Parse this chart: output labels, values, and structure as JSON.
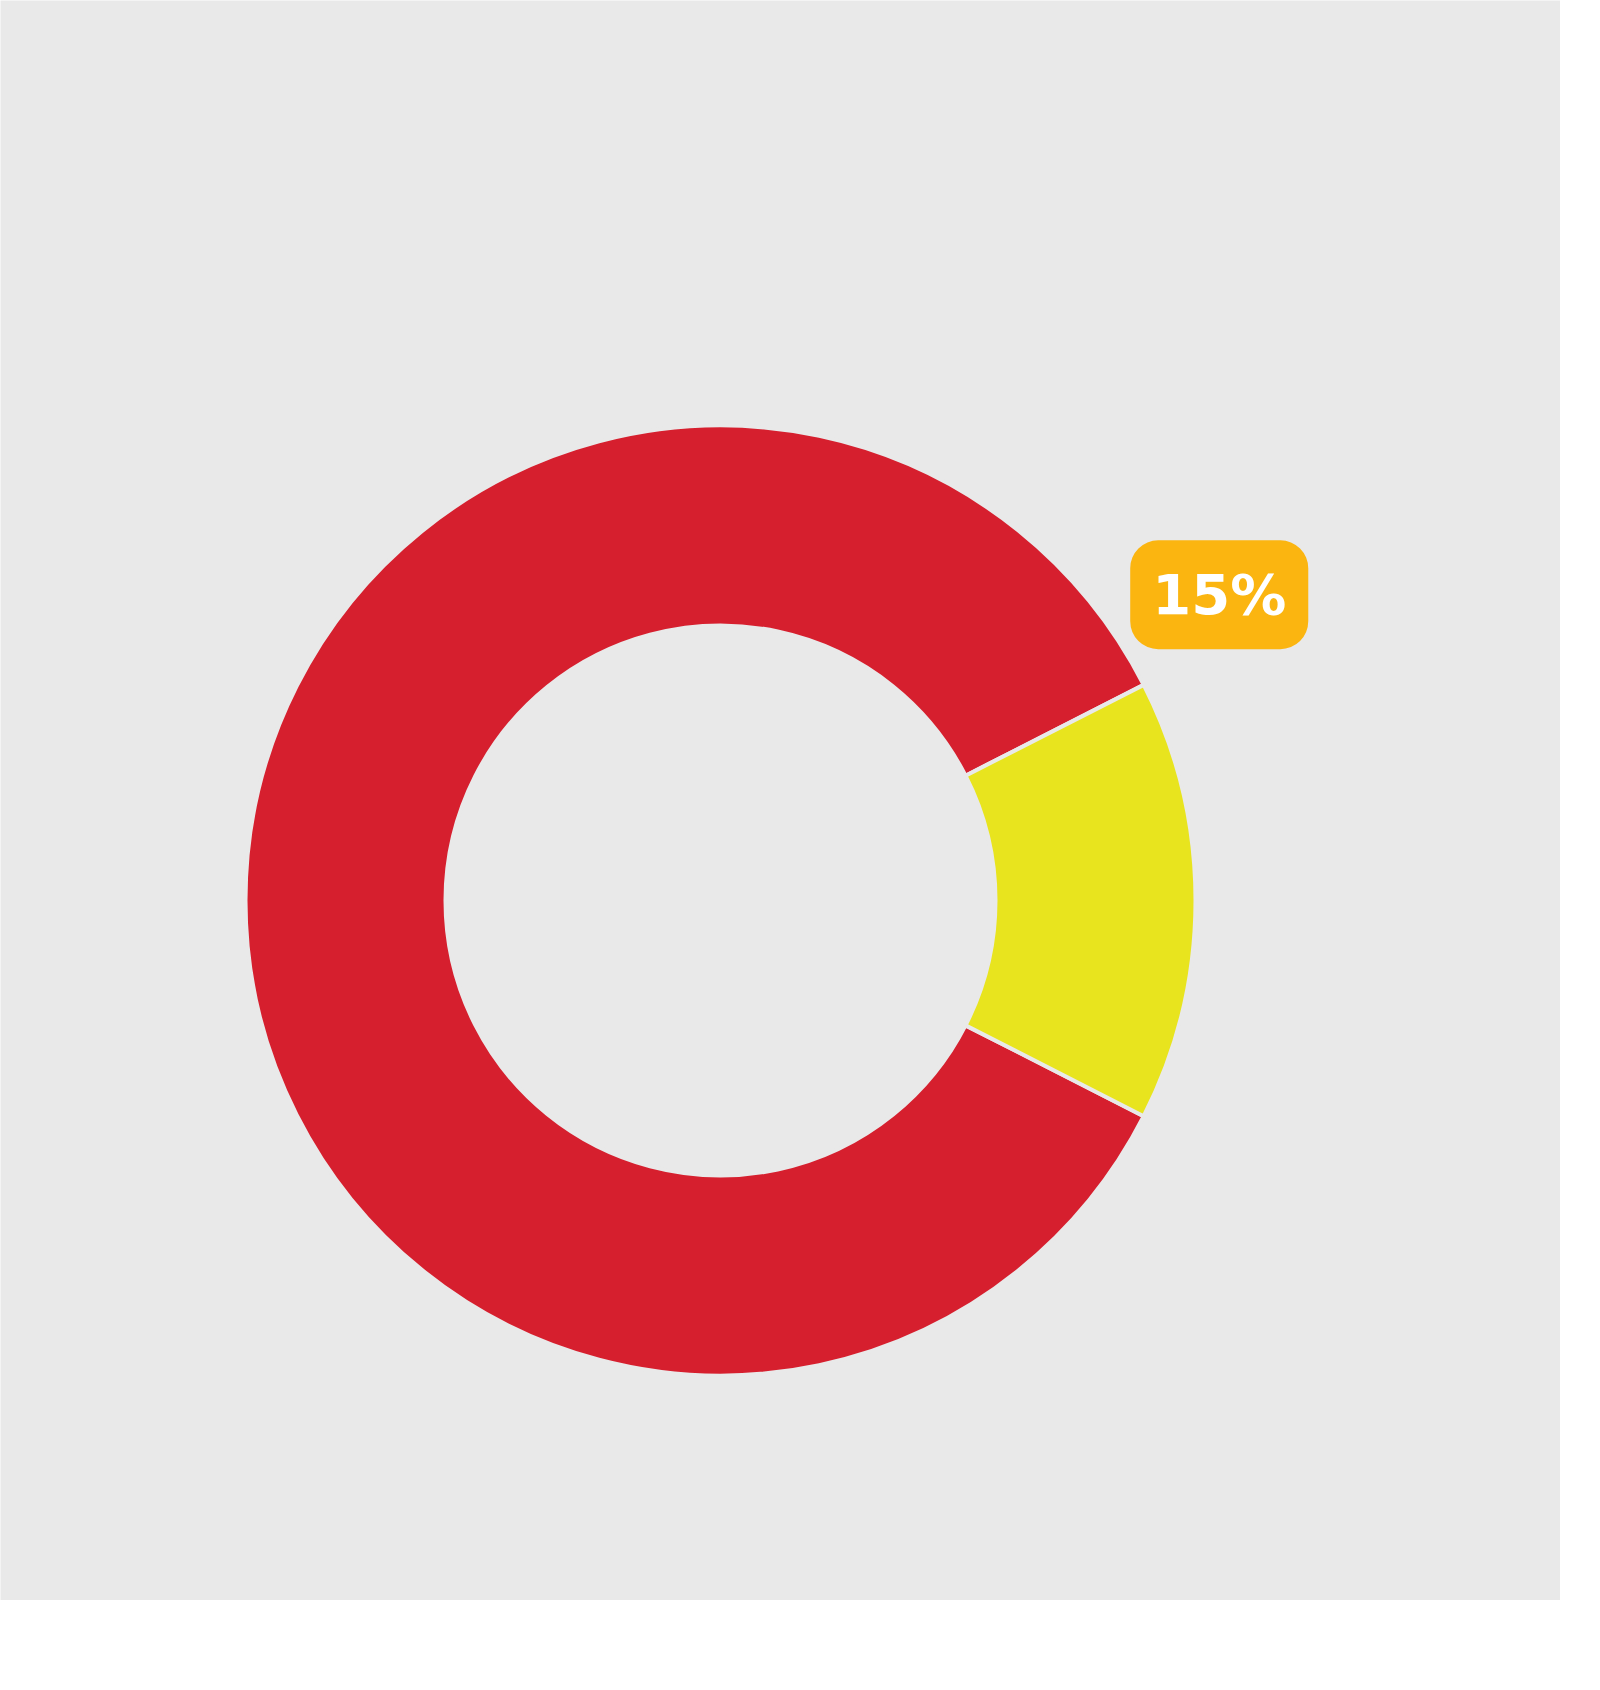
{
  "chart_data": {
    "type": "donut",
    "categories": [
      null,
      null
    ],
    "values": [
      85,
      15
    ],
    "colors": [
      "#d61f2e",
      "#e8e41e"
    ],
    "value_labels": [
      null,
      "15%"
    ]
  }
}
